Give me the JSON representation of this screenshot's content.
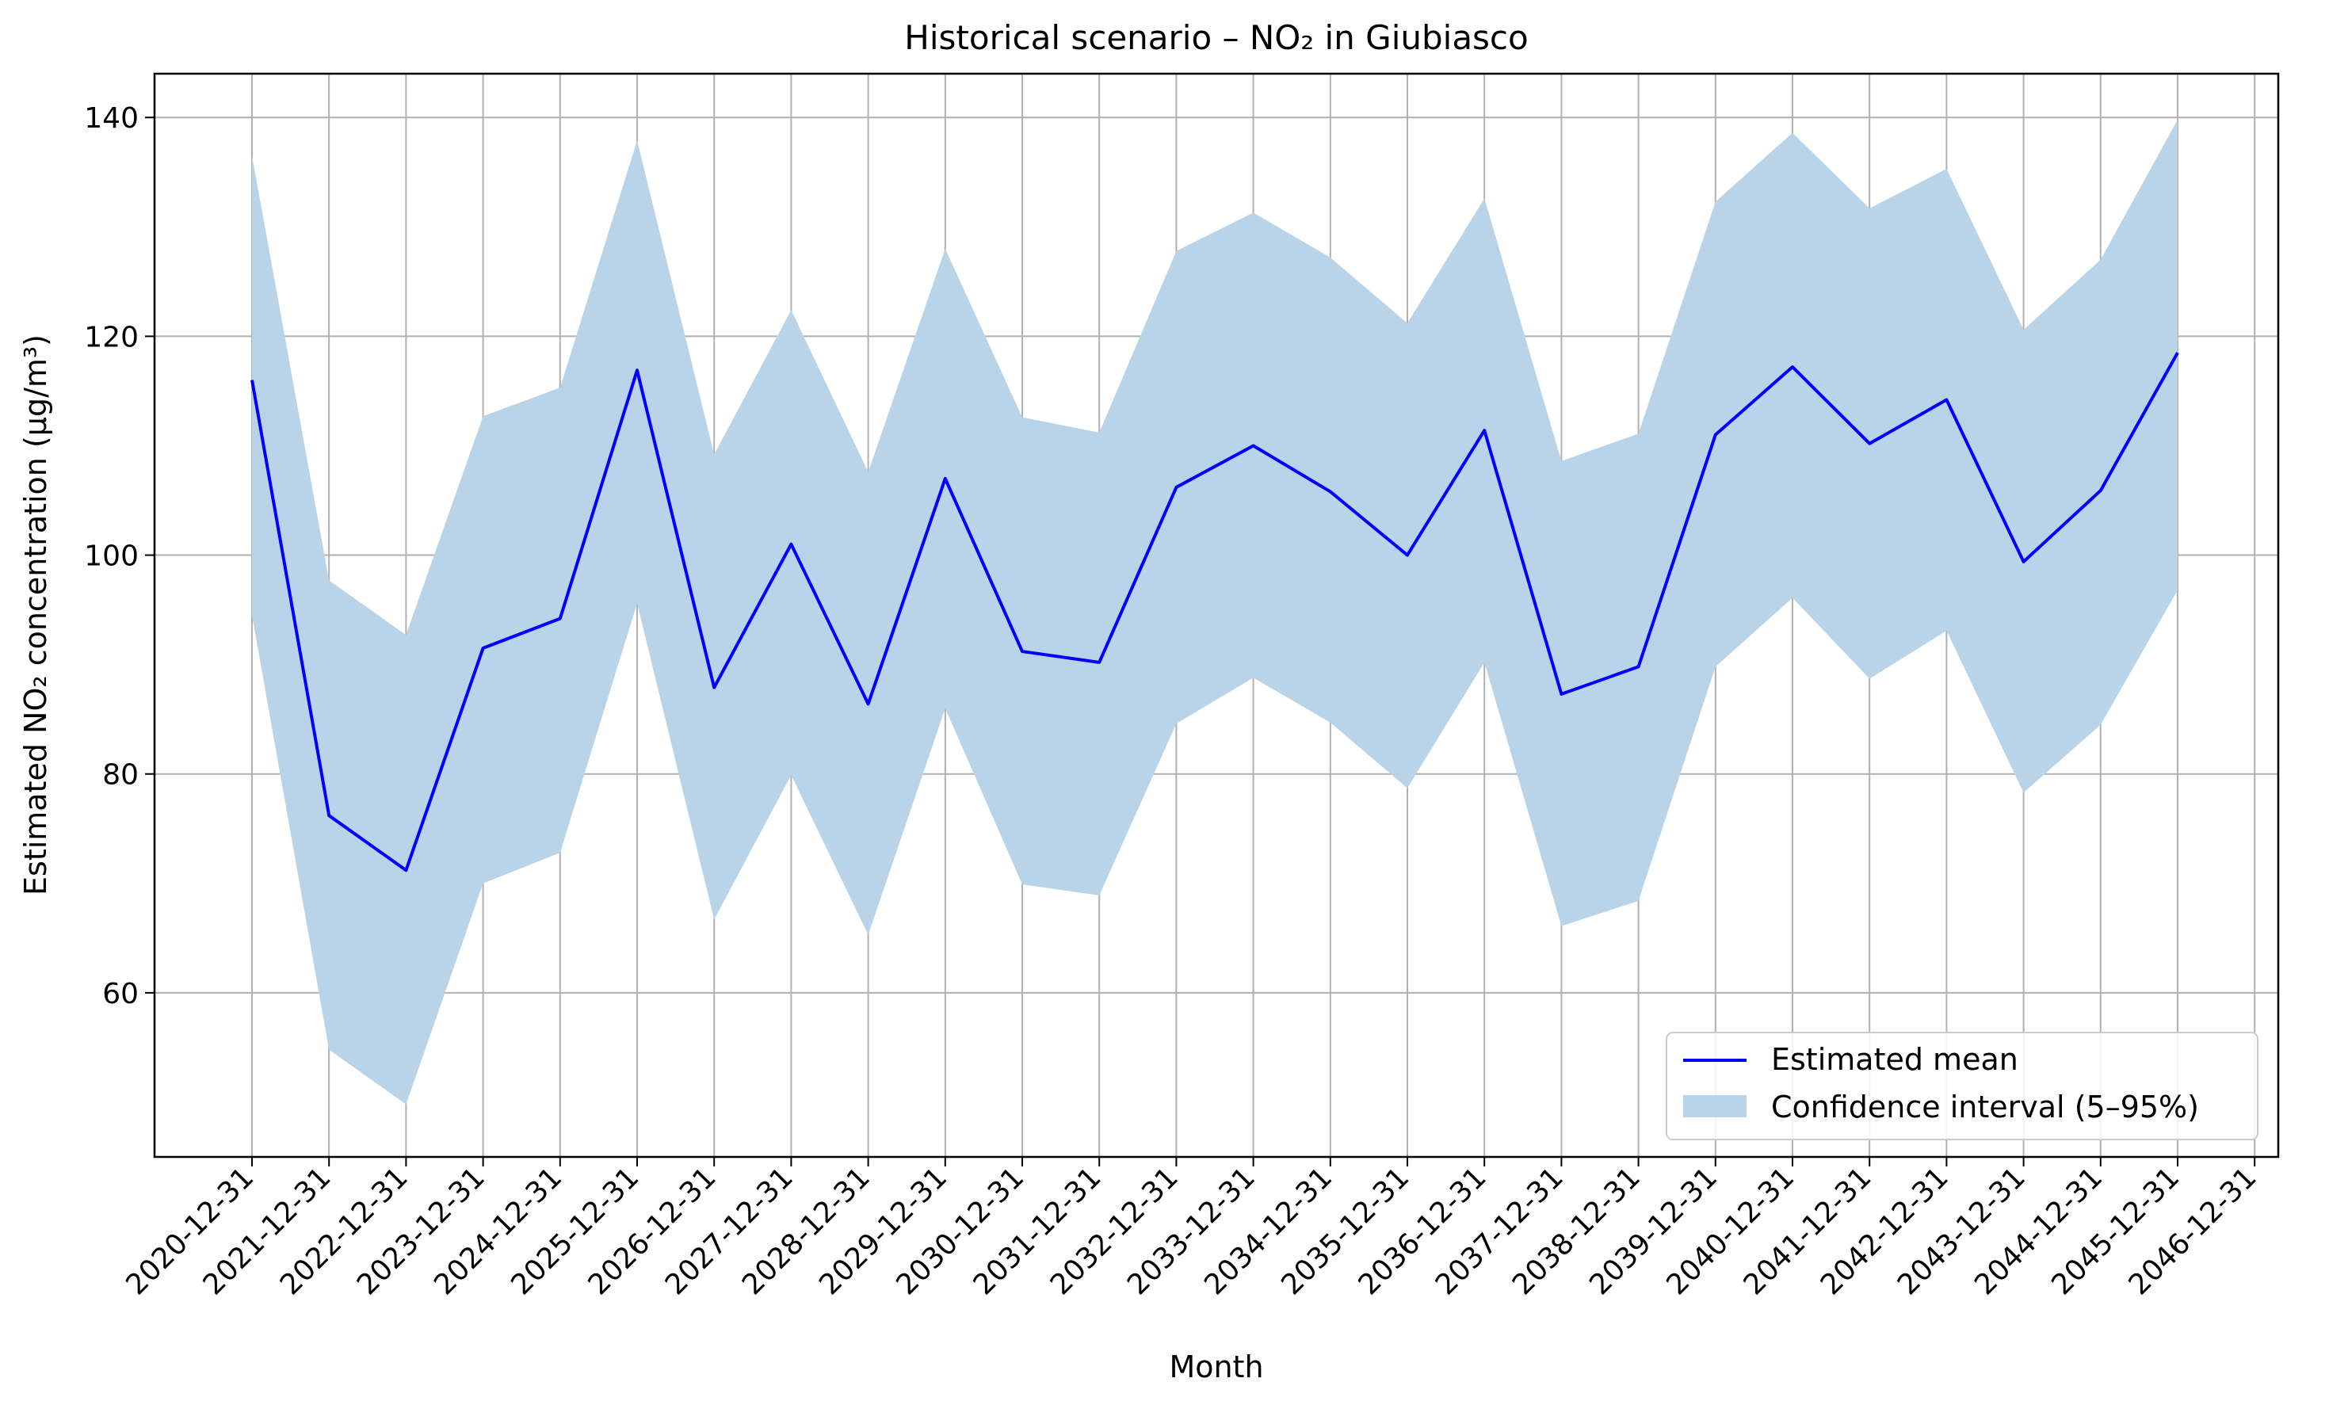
{
  "chart_data": {
    "type": "line",
    "title": "Historical scenario – NO₂ in Giubiasco",
    "xlabel": "Month",
    "ylabel": "Estimated NO₂ concentration (µg/m³)",
    "x_ticks": [
      "2020-12-31",
      "2021-12-31",
      "2022-12-31",
      "2023-12-31",
      "2024-12-31",
      "2025-12-31",
      "2026-12-31",
      "2027-12-31",
      "2028-12-31",
      "2029-12-31",
      "2030-12-31",
      "2031-12-31",
      "2032-12-31",
      "2033-12-31",
      "2034-12-31",
      "2035-12-31",
      "2036-12-31",
      "2037-12-31",
      "2038-12-31",
      "2039-12-31",
      "2040-12-31",
      "2041-12-31",
      "2042-12-31",
      "2043-12-31",
      "2044-12-31",
      "2045-12-31",
      "2046-12-31"
    ],
    "x": [
      "2020-12-31",
      "2021-12-31",
      "2022-12-31",
      "2023-12-31",
      "2024-12-31",
      "2025-12-31",
      "2026-12-31",
      "2027-12-31",
      "2028-12-31",
      "2029-12-31",
      "2030-12-31",
      "2031-12-31",
      "2032-12-31",
      "2033-12-31",
      "2034-12-31",
      "2035-12-31",
      "2036-12-31",
      "2037-12-31",
      "2038-12-31",
      "2039-12-31",
      "2040-12-31",
      "2041-12-31",
      "2042-12-31",
      "2043-12-31",
      "2044-12-31",
      "2045-12-31"
    ],
    "y_ticks": [
      60,
      80,
      100,
      120,
      140
    ],
    "ylim": [
      45,
      144
    ],
    "grid": true,
    "legend_position": "lower right",
    "series": [
      {
        "name": "Estimated mean",
        "kind": "line",
        "color": "#0000ff",
        "values": [
          116.0,
          76.2,
          71.2,
          91.5,
          94.2,
          116.9,
          87.9,
          101.0,
          86.4,
          107.0,
          91.2,
          90.2,
          106.2,
          110.0,
          105.8,
          100.0,
          111.4,
          87.3,
          89.8,
          111.0,
          117.2,
          110.2,
          114.2,
          99.4,
          105.9,
          118.5
        ]
      },
      {
        "name": "Confidence interval (5–95%)",
        "kind": "band",
        "color": "#b9d4e8",
        "lower": [
          94.5,
          54.8,
          49.8,
          70.0,
          72.8,
          95.6,
          66.7,
          79.9,
          65.3,
          86.0,
          69.9,
          68.9,
          84.6,
          88.8,
          84.7,
          78.7,
          90.2,
          66.1,
          68.4,
          89.8,
          96.1,
          88.7,
          93.1,
          78.3,
          84.5,
          96.8
        ],
        "upper": [
          136.5,
          97.7,
          92.7,
          112.7,
          115.3,
          137.9,
          109.2,
          122.4,
          107.6,
          128.0,
          112.6,
          111.2,
          127.8,
          131.3,
          127.2,
          121.2,
          132.6,
          108.6,
          111.1,
          132.3,
          138.6,
          131.7,
          135.3,
          120.6,
          127.0,
          139.8
        ]
      }
    ]
  }
}
